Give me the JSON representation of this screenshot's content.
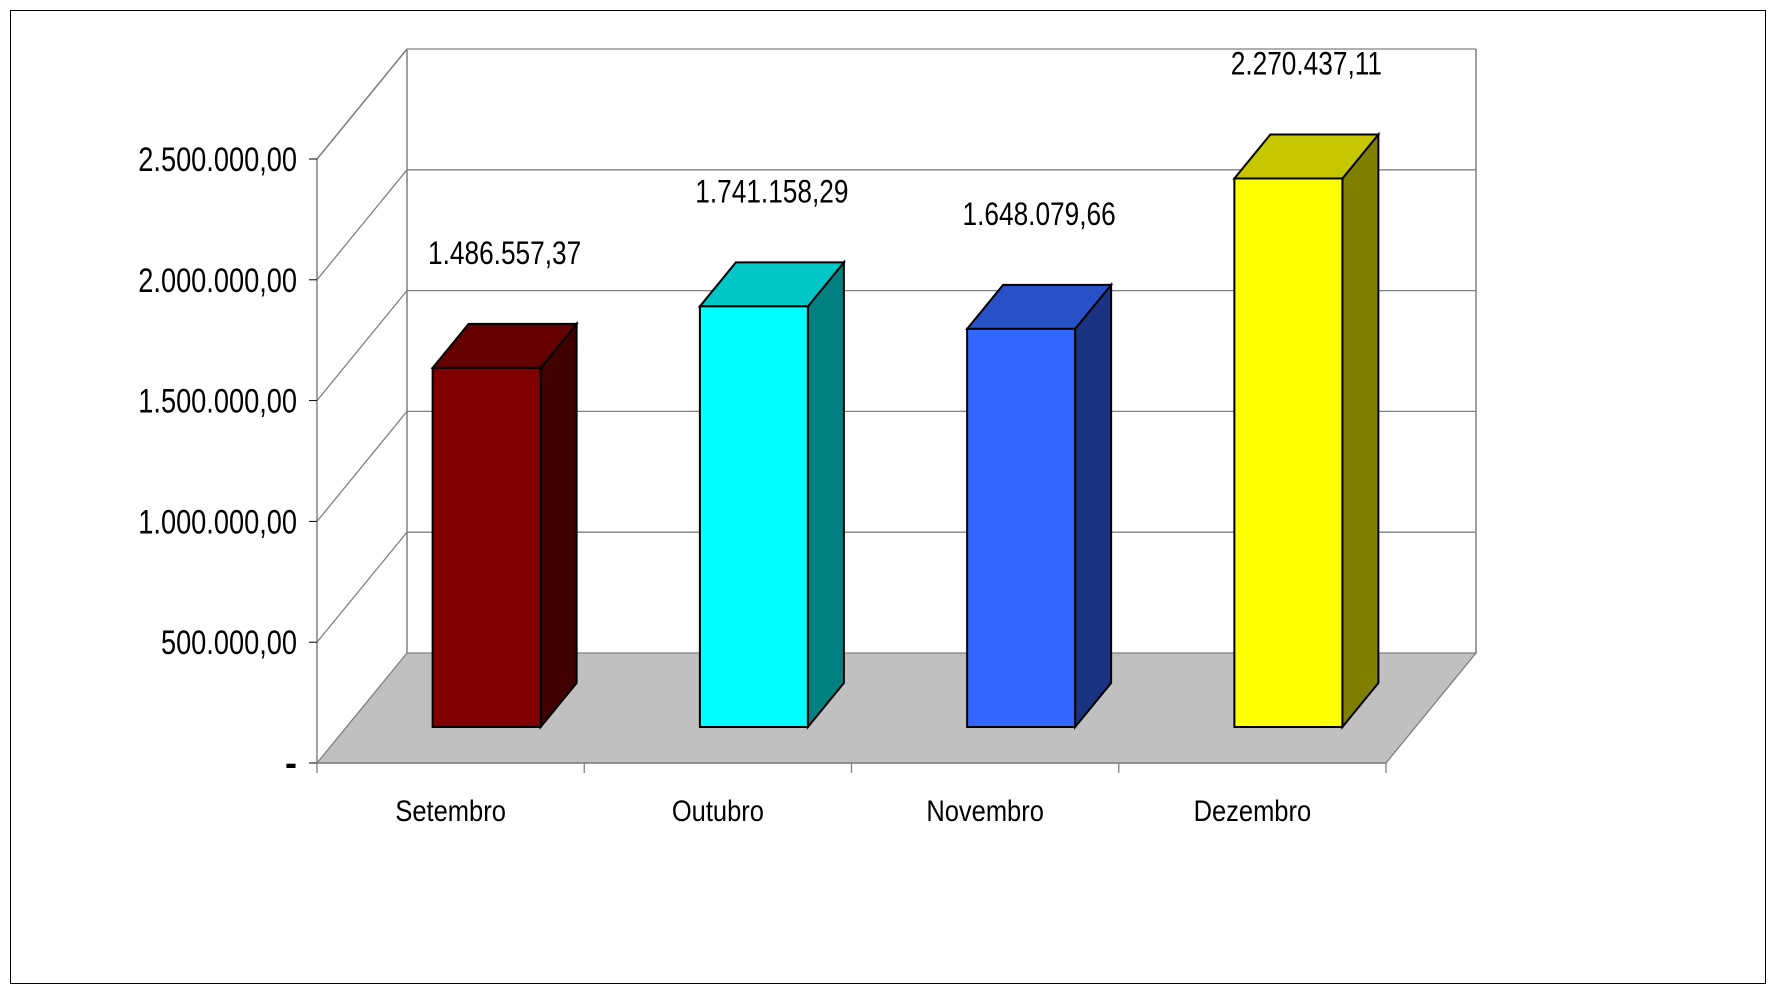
{
  "chart_data": {
    "type": "bar",
    "title": "",
    "xlabel": "",
    "ylabel": "",
    "categories": [
      "Setembro",
      "Outubro",
      "Novembro",
      "Dezembro"
    ],
    "values": [
      1486557.37,
      1741158.29,
      1648079.66,
      2270437.11
    ],
    "value_labels": [
      "1.486.557,37",
      "1.741.158,29",
      "1.648.079,66",
      "2.270.437,11"
    ],
    "ylim": [
      0,
      2500000
    ],
    "y_ticks": [
      0,
      500000,
      1000000,
      1500000,
      2000000,
      2500000
    ],
    "y_tick_labels": [
      "-",
      "500.000,00",
      "1.000.000,00",
      "1.500.000,00",
      "2.000.000,00",
      "2.500.000,00"
    ],
    "grid": true,
    "three_d": true,
    "legend": "none",
    "colors": {
      "bars": [
        "#800000",
        "#00FFFF",
        "#3366FF",
        "#FFFF00"
      ],
      "floor": "#C0C0C0",
      "gridline": "#808080"
    }
  }
}
